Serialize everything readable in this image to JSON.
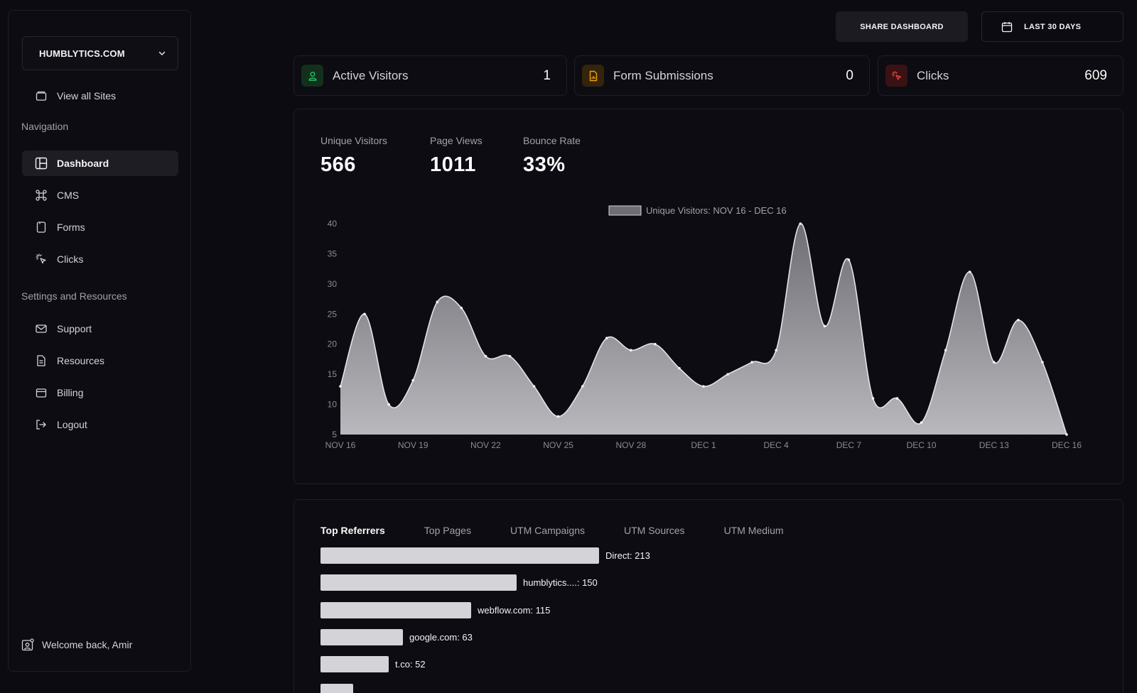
{
  "sidebar": {
    "site": "HUMBLYTICS.COM",
    "view_all": "View all Sites",
    "nav_heading": "Navigation",
    "nav": [
      {
        "label": "Dashboard"
      },
      {
        "label": "CMS"
      },
      {
        "label": "Forms"
      },
      {
        "label": "Clicks"
      }
    ],
    "settings_heading": "Settings and Resources",
    "settings": [
      {
        "label": "Support"
      },
      {
        "label": "Resources"
      },
      {
        "label": "Billing"
      },
      {
        "label": "Logout"
      }
    ],
    "welcome": "Welcome back, Amir"
  },
  "header": {
    "share": "SHARE DASHBOARD",
    "range": "LAST 30 DAYS"
  },
  "stats": [
    {
      "label": "Active Visitors",
      "value": "1",
      "color": "#22c55e"
    },
    {
      "label": "Form Submissions",
      "value": "0",
      "color": "#f59e0b"
    },
    {
      "label": "Clicks",
      "value": "609",
      "color": "#ef4444"
    }
  ],
  "metrics": [
    {
      "label": "Unique Visitors",
      "value": "566"
    },
    {
      "label": "Page Views",
      "value": "1011"
    },
    {
      "label": "Bounce Rate",
      "value": "33%"
    }
  ],
  "chart_data": {
    "type": "area",
    "legend": "Unique Visitors:  NOV 16 - DEC 16",
    "x": [
      "NOV 16",
      "NOV 17",
      "NOV 18",
      "NOV 19",
      "NOV 20",
      "NOV 21",
      "NOV 22",
      "NOV 23",
      "NOV 24",
      "NOV 25",
      "NOV 26",
      "NOV 27",
      "NOV 28",
      "NOV 29",
      "NOV 30",
      "DEC 1",
      "DEC 2",
      "DEC 3",
      "DEC 4",
      "DEC 5",
      "DEC 6",
      "DEC 7",
      "DEC 8",
      "DEC 9",
      "DEC 10",
      "DEC 11",
      "DEC 12",
      "DEC 13",
      "DEC 14",
      "DEC 15",
      "DEC 16"
    ],
    "values": [
      13,
      25,
      10,
      14,
      27,
      26,
      18,
      18,
      13,
      8,
      13,
      21,
      19,
      20,
      16,
      13,
      15,
      17,
      19,
      40,
      23,
      34,
      11,
      11,
      7,
      19,
      32,
      17,
      24,
      17,
      5
    ],
    "xticks": [
      "NOV 16",
      "NOV 19",
      "NOV 22",
      "NOV 25",
      "NOV 28",
      "DEC 1",
      "DEC 4",
      "DEC 7",
      "DEC 10",
      "DEC 13",
      "DEC 16"
    ],
    "yticks": [
      "40",
      "35",
      "30",
      "25",
      "20",
      "15",
      "10",
      "5"
    ],
    "ylim": [
      5,
      40
    ],
    "fill_color": "#8e8d93"
  },
  "referrers": {
    "tabs": [
      "Top Referrers",
      "Top Pages",
      "UTM Campaigns",
      "UTM Sources",
      "UTM Medium"
    ],
    "rows": [
      {
        "label": "Direct: 213",
        "value": 213
      },
      {
        "label": "humblytics....: 150",
        "value": 150
      },
      {
        "label": "webflow.com: 115",
        "value": 115
      },
      {
        "label": "google.com: 63",
        "value": 63
      },
      {
        "label": "t.co: 52",
        "value": 52
      },
      {
        "label": "",
        "value": 25
      }
    ]
  }
}
